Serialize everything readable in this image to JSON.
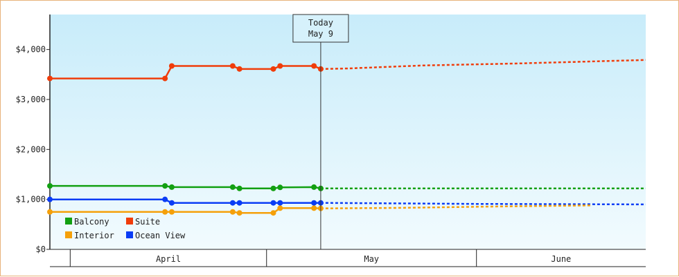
{
  "chart_data": {
    "type": "line",
    "today_label": [
      "Today",
      "May 9"
    ],
    "today": "2024-05-09",
    "y_ticks": [
      "$0",
      "$1,000",
      "$2,000",
      "$3,000",
      "$4,000"
    ],
    "y_tick_values": [
      0,
      1000,
      2000,
      3000,
      4000
    ],
    "ylim": [
      0,
      4700
    ],
    "xlim": [
      "2024-03-30",
      "2024-06-26"
    ],
    "month_labels": [
      {
        "label": "April",
        "start": "2024-04-02",
        "end": "2024-05-01"
      },
      {
        "label": "May",
        "start": "2024-05-01",
        "end": "2024-06-01"
      },
      {
        "label": "June",
        "start": "2024-06-01",
        "end": "2024-06-26"
      }
    ],
    "legend": [
      {
        "name": "Balcony",
        "color": "#12a012"
      },
      {
        "name": "Suite",
        "color": "#f03c0a"
      },
      {
        "name": "Interior",
        "color": "#f5a00a"
      },
      {
        "name": "Ocean View",
        "color": "#0a3cf5"
      }
    ],
    "series": [
      {
        "name": "Suite",
        "color": "#f03c0a",
        "points": [
          [
            "2024-03-30",
            3420
          ],
          [
            "2024-04-16",
            3420
          ],
          [
            "2024-04-17",
            3670
          ],
          [
            "2024-04-26",
            3670
          ],
          [
            "2024-04-27",
            3610
          ],
          [
            "2024-05-02",
            3610
          ],
          [
            "2024-05-03",
            3670
          ],
          [
            "2024-05-08",
            3670
          ],
          [
            "2024-05-09",
            3610
          ]
        ],
        "forecast": [
          [
            "2024-05-09",
            3610
          ],
          [
            "2024-05-13",
            3620
          ],
          [
            "2024-05-24",
            3680
          ],
          [
            "2024-06-07",
            3720
          ],
          [
            "2024-06-26",
            3790
          ]
        ]
      },
      {
        "name": "Balcony",
        "color": "#12a012",
        "points": [
          [
            "2024-03-30",
            1270
          ],
          [
            "2024-04-16",
            1270
          ],
          [
            "2024-04-17",
            1245
          ],
          [
            "2024-04-26",
            1245
          ],
          [
            "2024-04-27",
            1220
          ],
          [
            "2024-05-02",
            1220
          ],
          [
            "2024-05-03",
            1240
          ],
          [
            "2024-05-08",
            1245
          ],
          [
            "2024-05-09",
            1220
          ]
        ],
        "forecast": [
          [
            "2024-05-09",
            1220
          ],
          [
            "2024-06-26",
            1220
          ]
        ]
      },
      {
        "name": "Ocean View",
        "color": "#0a3cf5",
        "points": [
          [
            "2024-03-30",
            1000
          ],
          [
            "2024-04-16",
            1000
          ],
          [
            "2024-04-17",
            930
          ],
          [
            "2024-04-26",
            930
          ],
          [
            "2024-04-27",
            930
          ],
          [
            "2024-05-02",
            930
          ],
          [
            "2024-05-03",
            930
          ],
          [
            "2024-05-08",
            930
          ],
          [
            "2024-05-09",
            930
          ]
        ],
        "forecast": [
          [
            "2024-05-09",
            930
          ],
          [
            "2024-05-20",
            920
          ],
          [
            "2024-06-01",
            910
          ],
          [
            "2024-06-26",
            900
          ]
        ]
      },
      {
        "name": "Interior",
        "color": "#f5a00a",
        "points": [
          [
            "2024-03-30",
            750
          ],
          [
            "2024-04-16",
            750
          ],
          [
            "2024-04-17",
            750
          ],
          [
            "2024-04-26",
            750
          ],
          [
            "2024-04-27",
            730
          ],
          [
            "2024-05-02",
            730
          ],
          [
            "2024-05-03",
            825
          ],
          [
            "2024-05-08",
            825
          ],
          [
            "2024-05-09",
            820
          ]
        ],
        "forecast": [
          [
            "2024-05-09",
            820
          ],
          [
            "2024-05-20",
            830
          ],
          [
            "2024-06-05",
            860
          ],
          [
            "2024-06-18",
            880
          ]
        ]
      }
    ]
  }
}
